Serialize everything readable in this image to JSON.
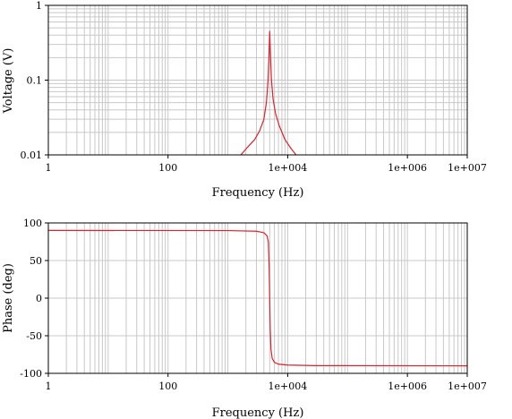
{
  "chart_data": [
    {
      "type": "line",
      "xlabel": "Frequency (Hz)",
      "ylabel": "Voltage (V)",
      "x_scale": "log",
      "y_scale": "log",
      "xlim": [
        1,
        10000000
      ],
      "ylim": [
        0.01,
        1
      ],
      "grid": true,
      "x_tick_labels": [
        {
          "value": 1,
          "label": "1"
        },
        {
          "value": 100,
          "label": "100"
        },
        {
          "value": 10000,
          "label": "1e+004"
        },
        {
          "value": 1000000,
          "label": "1e+006"
        },
        {
          "value": 10000000,
          "label": "1e+007"
        }
      ],
      "y_tick_labels": [
        {
          "value": 1,
          "label": "1"
        },
        {
          "value": 0.1,
          "label": "0.1"
        },
        {
          "value": 0.01,
          "label": "0.01"
        }
      ],
      "series": [
        {
          "color": "#e0202a",
          "x": [
            1650,
            2100,
            2800,
            3400,
            4000,
            4400,
            4700,
            4850,
            5000,
            5150,
            5350,
            5700,
            6300,
            7300,
            9000,
            11500,
            13800
          ],
          "y": [
            0.01,
            0.0125,
            0.016,
            0.021,
            0.03,
            0.05,
            0.1,
            0.2,
            0.45,
            0.22,
            0.1,
            0.055,
            0.035,
            0.024,
            0.016,
            0.012,
            0.01
          ]
        }
      ]
    },
    {
      "type": "line",
      "xlabel": "Frequency (Hz)",
      "ylabel": "Phase (deg)",
      "x_scale": "log",
      "y_scale": "linear",
      "xlim": [
        1,
        10000000
      ],
      "ylim": [
        -100,
        100
      ],
      "grid": true,
      "x_tick_labels": [
        {
          "value": 1,
          "label": "1"
        },
        {
          "value": 100,
          "label": "100"
        },
        {
          "value": 10000,
          "label": "1e+004"
        },
        {
          "value": 1000000,
          "label": "1e+006"
        },
        {
          "value": 10000000,
          "label": "1e+007"
        }
      ],
      "y_tick_labels": [
        {
          "value": 100,
          "label": "100"
        },
        {
          "value": 50,
          "label": "50"
        },
        {
          "value": 0,
          "label": "0"
        },
        {
          "value": -50,
          "label": "-50"
        },
        {
          "value": -100,
          "label": "-100"
        }
      ],
      "series": [
        {
          "color": "#e0202a",
          "x": [
            1,
            1000,
            3000,
            4000,
            4500,
            4750,
            4900,
            5000,
            5100,
            5250,
            5500,
            6000,
            7000,
            10000,
            30000,
            10000000
          ],
          "y": [
            90,
            89.8,
            89,
            87,
            83,
            75,
            40,
            0,
            -40,
            -68,
            -80,
            -85.5,
            -87.8,
            -89,
            -89.7,
            -90
          ]
        }
      ]
    }
  ]
}
